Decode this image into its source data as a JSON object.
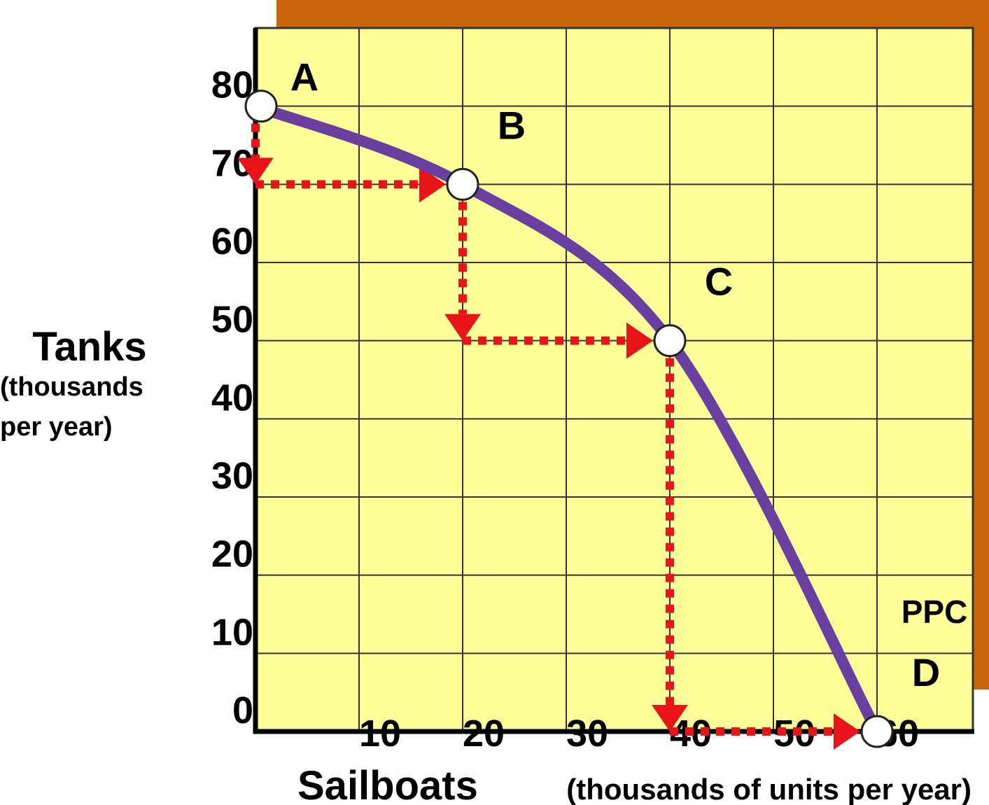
{
  "chart_data": {
    "type": "line",
    "title_y": "Tanks",
    "title_y_sub": [
      "(thousands",
      "per year)"
    ],
    "title_x": "Sailboats",
    "title_x_sub": "(thousands of units per year)",
    "annotation": "PPC",
    "x": [
      0,
      20,
      40,
      60
    ],
    "series": [
      {
        "name": "PPC",
        "color": "#6a3fa0",
        "values": [
          80,
          70,
          50,
          0
        ],
        "labels": [
          "A",
          "B",
          "C",
          "D"
        ]
      }
    ],
    "xlim": [
      0,
      70
    ],
    "ylim": [
      0,
      90
    ],
    "xticks": [
      10,
      20,
      30,
      40,
      50,
      60
    ],
    "yticks": [
      0,
      10,
      20,
      30,
      40,
      50,
      60,
      70,
      80
    ],
    "grid": true,
    "arrow_color": "#e8141a"
  }
}
